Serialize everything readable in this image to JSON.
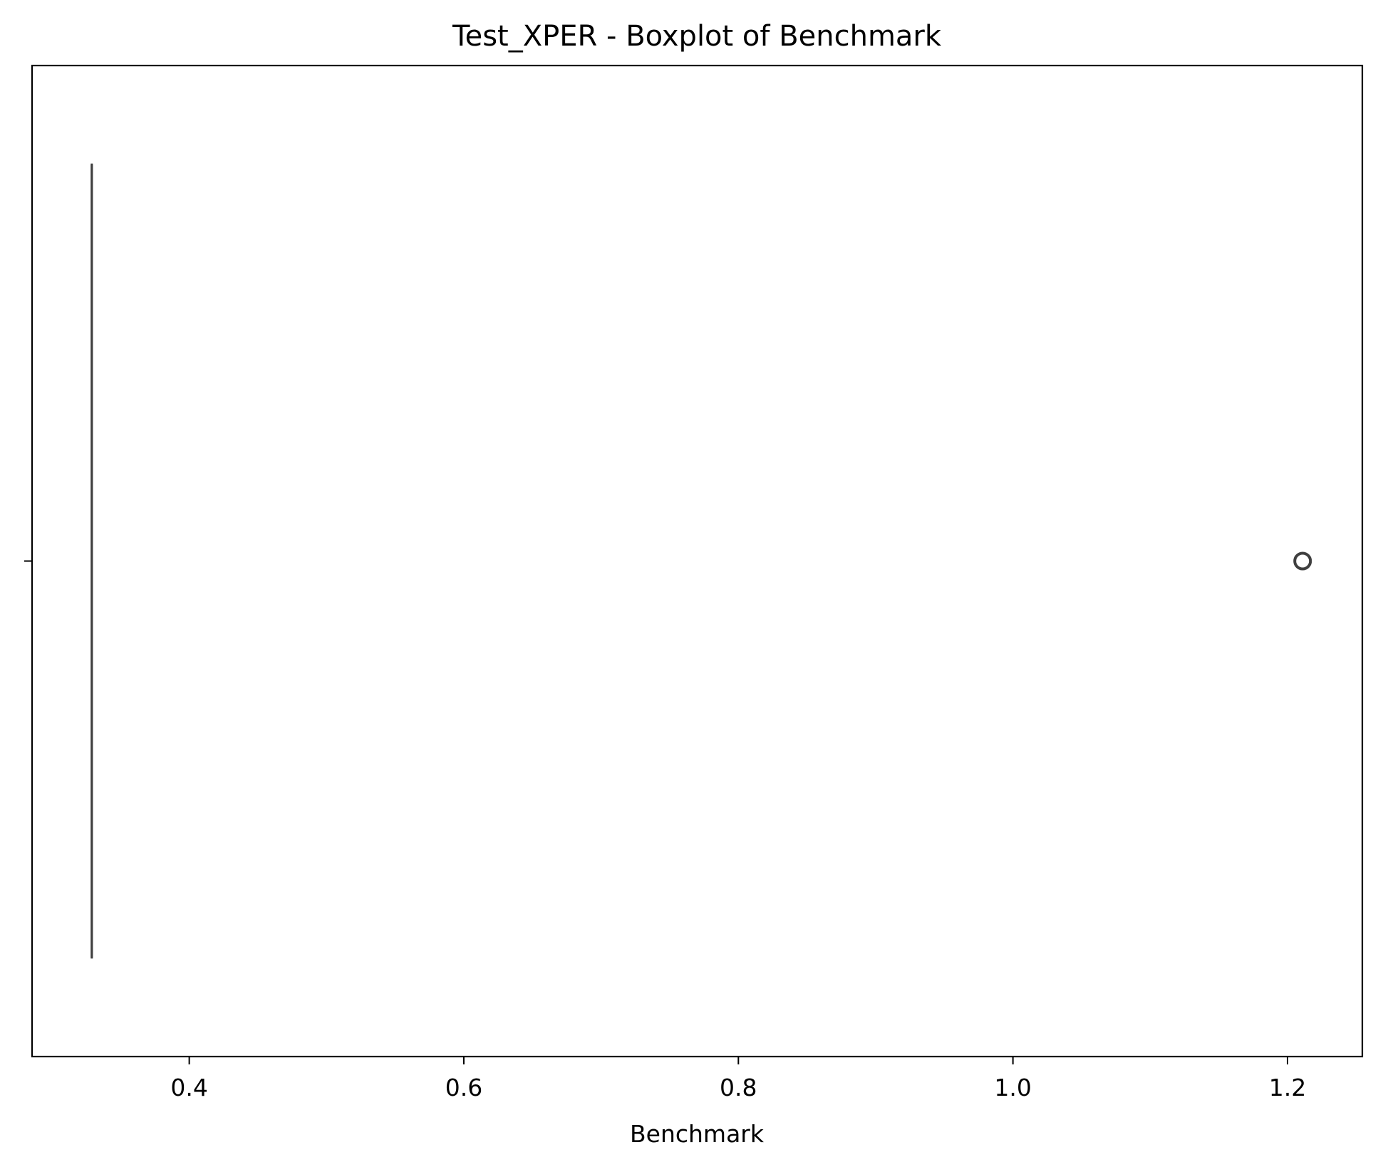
{
  "chart_data": {
    "type": "boxplot",
    "title": "Test_XPER - Boxplot of Benchmark",
    "xlabel": "Benchmark",
    "ylabel": "",
    "xlim": [
      0.2855,
      1.2545
    ],
    "xticks": [
      0.4,
      0.6,
      0.8,
      1.0,
      1.2
    ],
    "xtick_labels": [
      "0.4",
      "0.6",
      "0.8",
      "1.0",
      "1.2"
    ],
    "orientation": "horizontal",
    "grid": false,
    "legend": false,
    "box": {
      "whisker_low": 0.329,
      "q1": 0.329,
      "median": 0.329,
      "q3": 0.329,
      "whisker_high": 0.329,
      "outliers": [
        1.211
      ]
    },
    "colors": {
      "box_line": "#3f3f3f",
      "outlier_edge": "#3f3f3f",
      "axes": "#000000"
    }
  }
}
